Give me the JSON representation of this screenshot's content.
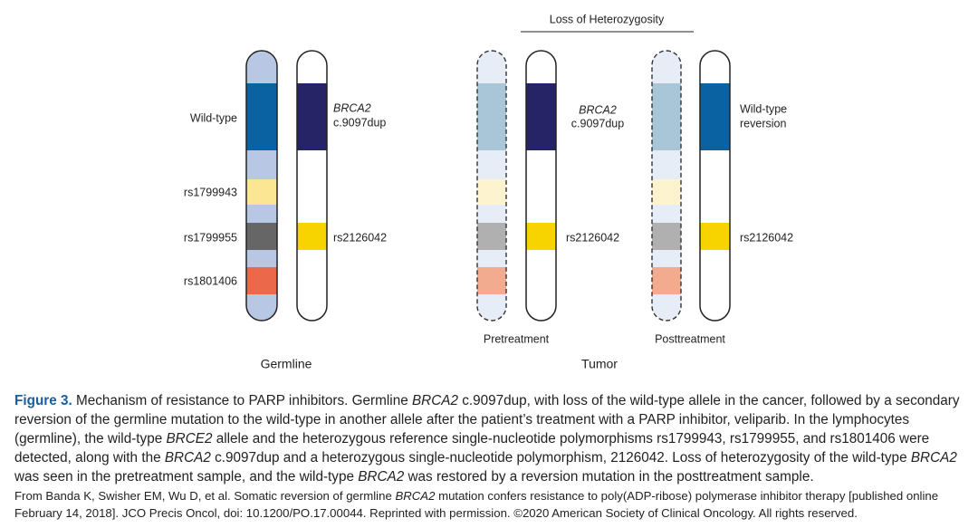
{
  "germline": {
    "title": "Germline",
    "left_labels": [
      "Wild-type",
      "rs1799943",
      "rs1799955",
      "rs1801406"
    ],
    "mutation": [
      "BRCA2",
      "c.9097dup"
    ],
    "snp": "rs2126042"
  },
  "tumor": {
    "title": "Tumor",
    "loh": "Loss of Heterozygosity",
    "pretreatment": {
      "title": "Pretreatment",
      "mutation": [
        "BRCA2",
        "c.9097dup"
      ],
      "snp": "rs2126042"
    },
    "posttreatment": {
      "title": "Posttreatment",
      "reversion": [
        "Wild-type",
        "reversion"
      ],
      "snp": "rs2126042"
    }
  },
  "caption": {
    "runs": [
      "Figure 3.",
      " Mechanism of resistance to PARP inhibitors. Germline ",
      "BRCA2",
      " c.9097dup, with loss of the wild-type allele in the cancer, followed by a secondary reversion of the germline mutation to the wild-type in another allele after the patient’s treatment with a PARP inhibitor, veliparib. In the lymphocytes (germline), the wild-type ",
      "BRCE2",
      " allele and the heterozygous reference single-nucleotide polymorphisms rs1799943, rs1799955, and rs1801406 were detected, along with the ",
      "BRCA2",
      " c.9097dup and a heterozygous single-nucleotide polymorphism, 2126042. Loss of heterozygosity of the wild-type ",
      "BRCA2",
      " was seen in the pretreatment sample, and the wild-type ",
      "BRCA2",
      " was restored by a reversion mutation in the posttreatment sample."
    ]
  },
  "credit": {
    "runs": [
      "From Banda K, Swisher EM, Wu D, et al. Somatic reversion of germline ",
      "BRCA2",
      " mutation confers resistance to poly(ADP-ribose) polymerase inhibitor therapy [published online February 14, 2018]. JCO Precis Oncol, doi: 10.1200/PO.17.00044. Reprinted with permission. ©2020 American Society of Clinical Oncology. All rights reserved."
    ]
  }
}
